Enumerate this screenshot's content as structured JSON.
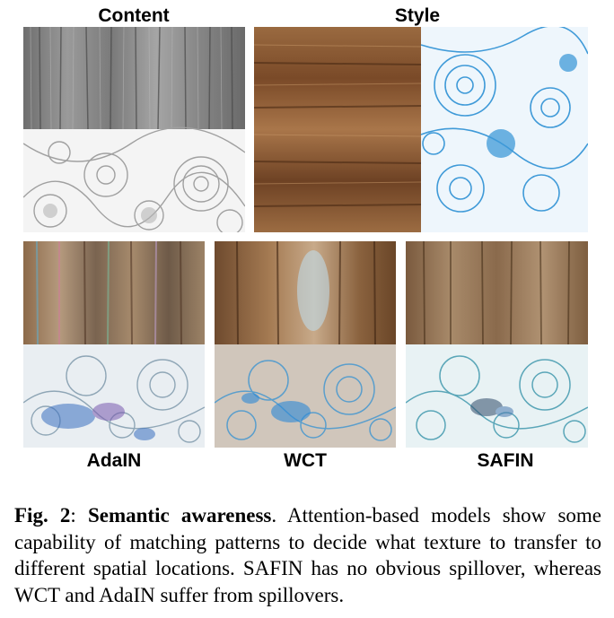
{
  "labels": {
    "content": "Content",
    "style": "Style",
    "adain": "AdaIN",
    "wct": "WCT",
    "safin": "SAFIN"
  },
  "caption": {
    "fig": "Fig. 2",
    "sep": ": ",
    "title": "Semantic awareness",
    "text": ". Attention-based models show some capability of matching patterns to decide what texture to transfer to different spatial locations. SAFIN has no obvious spillover, whereas WCT and AdaIN suffer from spillovers."
  },
  "colors": {
    "gray_wood": "#8a8a8a",
    "wood_brown": "#8b5a33",
    "doodle_blue": "#3f9ad8",
    "doodle_gray": "#bfbfbf"
  }
}
